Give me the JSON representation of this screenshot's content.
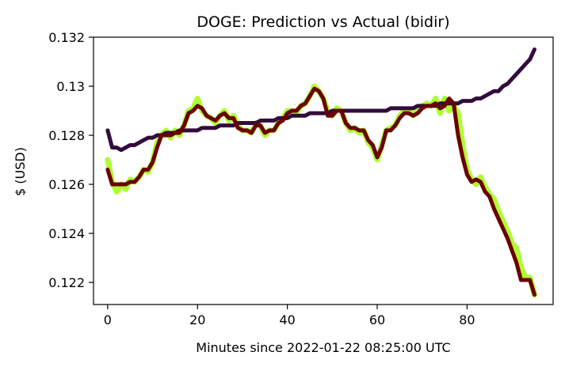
{
  "chart_data": {
    "type": "line",
    "title": "DOGE: Prediction vs Actual (bidir)",
    "xlabel": "Minutes since 2022-01-22 08:25:00 UTC",
    "ylabel": "$ (USD)",
    "xlim": [
      -3.15,
      99.15
    ],
    "ylim": [
      0.1211,
      0.132
    ],
    "grid": false,
    "x_ticks": [
      0,
      20,
      40,
      60,
      80
    ],
    "x_tick_labels": [
      "0",
      "20",
      "40",
      "60",
      "80"
    ],
    "y_ticks": [
      0.122,
      0.124,
      0.126,
      0.128,
      0.13,
      0.132
    ],
    "y_tick_labels": [
      "0.122",
      "0.124",
      "0.126",
      "0.128",
      "0.13",
      "0.132"
    ],
    "series": [
      {
        "color": "#adff2f",
        "values": [
          0.127,
          0.1261,
          0.1257,
          0.126,
          0.1258,
          0.1262,
          0.1261,
          0.1263,
          0.1266,
          0.1265,
          0.1269,
          0.1277,
          0.128,
          0.1282,
          0.1279,
          0.1282,
          0.128,
          0.1284,
          0.129,
          0.1291,
          0.1295,
          0.129,
          0.1288,
          0.1287,
          0.1285,
          0.1288,
          0.129,
          0.1286,
          0.1288,
          0.1284,
          0.1282,
          0.1282,
          0.1281,
          0.1285,
          0.1284,
          0.128,
          0.1282,
          0.1282,
          0.1285,
          0.1287,
          0.129,
          0.129,
          0.1289,
          0.1292,
          0.1293,
          0.1296,
          0.13,
          0.1298,
          0.1295,
          0.129,
          0.1288,
          0.1291,
          0.129,
          0.1285,
          0.1282,
          0.1283,
          0.1281,
          0.1282,
          0.1277,
          0.1275,
          0.127,
          0.1276,
          0.1282,
          0.1283,
          0.1284,
          0.1288,
          0.129,
          0.129,
          0.1288,
          0.129,
          0.1292,
          0.1293,
          0.1292,
          0.1295,
          0.1289,
          0.1295,
          0.129,
          0.1292,
          0.1289,
          0.1276,
          0.1266,
          0.1262,
          0.126,
          0.1263,
          0.1259,
          0.1256,
          0.1254,
          0.1249,
          0.1245,
          0.1241,
          0.1236,
          0.1234,
          0.1226,
          0.1222,
          0.1222,
          0.1215
        ]
      },
      {
        "color": "#320c3c",
        "values": [
          0.1282,
          0.1275,
          0.1275,
          0.1274,
          0.1275,
          0.1276,
          0.1276,
          0.1277,
          0.1278,
          0.1279,
          0.1279,
          0.128,
          0.128,
          0.1281,
          0.1281,
          0.1281,
          0.1282,
          0.1282,
          0.1282,
          0.1282,
          0.1282,
          0.1283,
          0.1283,
          0.1283,
          0.1283,
          0.1284,
          0.1284,
          0.1284,
          0.1284,
          0.1285,
          0.1285,
          0.1285,
          0.1285,
          0.1285,
          0.1286,
          0.1286,
          0.1286,
          0.1286,
          0.1287,
          0.1287,
          0.1287,
          0.1288,
          0.1288,
          0.1288,
          0.1288,
          0.1289,
          0.1289,
          0.1289,
          0.1289,
          0.1289,
          0.129,
          0.129,
          0.129,
          0.129,
          0.129,
          0.129,
          0.129,
          0.129,
          0.129,
          0.129,
          0.129,
          0.129,
          0.129,
          0.1291,
          0.1291,
          0.1291,
          0.1291,
          0.1291,
          0.1291,
          0.1292,
          0.1292,
          0.1292,
          0.1292,
          0.1292,
          0.1293,
          0.1293,
          0.1293,
          0.1293,
          0.1293,
          0.1294,
          0.1294,
          0.1294,
          0.1295,
          0.1295,
          0.1296,
          0.1297,
          0.1298,
          0.1298,
          0.13,
          0.1301,
          0.1303,
          0.1305,
          0.1307,
          0.1309,
          0.1311,
          0.1315
        ]
      },
      {
        "color": "#6b0000",
        "values": [
          0.1266,
          0.126,
          0.126,
          0.126,
          0.126,
          0.1261,
          0.1261,
          0.1263,
          0.1266,
          0.1266,
          0.1269,
          0.1275,
          0.128,
          0.128,
          0.128,
          0.1281,
          0.1281,
          0.1284,
          0.1289,
          0.129,
          0.1292,
          0.1291,
          0.1288,
          0.1287,
          0.1286,
          0.1288,
          0.1289,
          0.1287,
          0.1287,
          0.1283,
          0.1282,
          0.1282,
          0.1281,
          0.1284,
          0.1284,
          0.1281,
          0.1282,
          0.1282,
          0.1285,
          0.1286,
          0.1289,
          0.129,
          0.129,
          0.1292,
          0.1293,
          0.1296,
          0.1299,
          0.1298,
          0.1295,
          0.1288,
          0.1288,
          0.129,
          0.129,
          0.1285,
          0.1283,
          0.1283,
          0.1282,
          0.1282,
          0.1278,
          0.1276,
          0.1271,
          0.1275,
          0.1282,
          0.1282,
          0.1284,
          0.1287,
          0.1289,
          0.1289,
          0.1288,
          0.1289,
          0.1291,
          0.1292,
          0.1292,
          0.1293,
          0.1291,
          0.1292,
          0.1295,
          0.1293,
          0.128,
          0.1271,
          0.1264,
          0.1261,
          0.1262,
          0.1261,
          0.1257,
          0.1255,
          0.125,
          0.1246,
          0.1242,
          0.1238,
          0.1233,
          0.1228,
          0.1221,
          0.1221,
          0.1221,
          0.1215
        ]
      }
    ]
  }
}
